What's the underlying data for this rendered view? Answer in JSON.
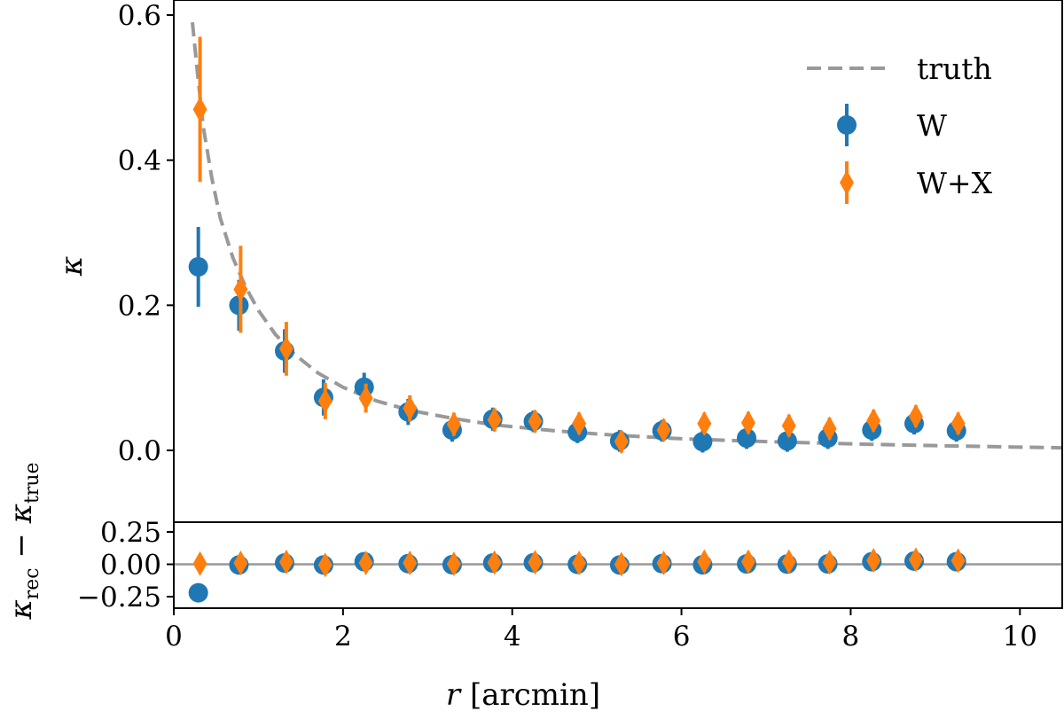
{
  "chart_data": [
    {
      "panel": "main",
      "type": "scatter",
      "xlim": [
        0,
        10.5
      ],
      "ylim": [
        -0.1,
        0.6
      ],
      "xlabel": "",
      "ylabel": "κ",
      "yticks": [
        0.0,
        0.2,
        0.4,
        0.6
      ],
      "ytick_labels": [
        "0.0",
        "0.2",
        "0.4",
        "0.6"
      ],
      "truth": {
        "name": "truth",
        "color": "#999999",
        "style": "dashed",
        "x": [
          0.22,
          0.28,
          0.35,
          0.45,
          0.55,
          0.7,
          0.85,
          1.0,
          1.2,
          1.4,
          1.7,
          2.0,
          2.4,
          2.8,
          3.3,
          3.8,
          4.5,
          5.2,
          6.0,
          7.0,
          8.0,
          9.0,
          10.0,
          10.5
        ],
        "y": [
          0.59,
          0.52,
          0.445,
          0.375,
          0.32,
          0.265,
          0.225,
          0.193,
          0.16,
          0.135,
          0.107,
          0.087,
          0.068,
          0.055,
          0.044,
          0.035,
          0.027,
          0.021,
          0.016,
          0.012,
          0.009,
          0.0065,
          0.0045,
          0.0035
        ]
      },
      "series": [
        {
          "name": "W",
          "marker": "circle",
          "color": "#1f77b4",
          "x": [
            0.29,
            0.77,
            1.31,
            1.77,
            2.25,
            2.77,
            3.29,
            3.77,
            4.25,
            4.77,
            5.27,
            5.77,
            6.25,
            6.77,
            7.25,
            7.73,
            8.25,
            8.75,
            9.25
          ],
          "y": [
            0.253,
            0.2,
            0.137,
            0.073,
            0.087,
            0.053,
            0.028,
            0.043,
            0.04,
            0.025,
            0.013,
            0.027,
            0.012,
            0.017,
            0.013,
            0.017,
            0.028,
            0.037,
            0.027
          ],
          "yerr": [
            0.055,
            0.035,
            0.03,
            0.025,
            0.02,
            0.018,
            0.016,
            0.016,
            0.015,
            0.015,
            0.015,
            0.015,
            0.015,
            0.015,
            0.015,
            0.015,
            0.015,
            0.015,
            0.015
          ]
        },
        {
          "name": "W+X",
          "marker": "diamond",
          "color": "#ff7f0e",
          "x": [
            0.31,
            0.79,
            1.33,
            1.79,
            2.27,
            2.79,
            3.31,
            3.79,
            4.27,
            4.79,
            5.29,
            5.79,
            6.27,
            6.79,
            7.27,
            7.75,
            8.27,
            8.77,
            9.27
          ],
          "y": [
            0.47,
            0.222,
            0.14,
            0.068,
            0.072,
            0.058,
            0.036,
            0.042,
            0.04,
            0.037,
            0.012,
            0.028,
            0.037,
            0.038,
            0.034,
            0.03,
            0.041,
            0.047,
            0.037
          ],
          "yerr": [
            0.1,
            0.06,
            0.037,
            0.025,
            0.02,
            0.018,
            0.016,
            0.016,
            0.015,
            0.015,
            0.015,
            0.015,
            0.015,
            0.015,
            0.015,
            0.015,
            0.015,
            0.015,
            0.015
          ]
        }
      ],
      "legend": {
        "placement": "top-right",
        "entries": [
          "truth",
          "W",
          "W+X"
        ]
      }
    },
    {
      "panel": "residual",
      "type": "scatter",
      "xlim": [
        0,
        10.5
      ],
      "ylim": [
        -0.32,
        0.32
      ],
      "xlabel": "r [arcmin]",
      "ylabel": "κrec − κtrue",
      "xticks": [
        0,
        2,
        4,
        6,
        8,
        10
      ],
      "xtick_labels": [
        "0",
        "2",
        "4",
        "6",
        "8",
        "10"
      ],
      "yticks": [
        -0.25,
        0.0,
        0.25
      ],
      "ytick_labels": [
        "−0.25",
        "0.00",
        "0.25"
      ],
      "zero_line": {
        "y": 0,
        "color": "#999999"
      },
      "series": [
        {
          "name": "W",
          "marker": "circle",
          "color": "#1f77b4",
          "x": [
            0.29,
            0.77,
            1.31,
            1.77,
            2.25,
            2.77,
            3.29,
            3.77,
            4.25,
            4.77,
            5.27,
            5.77,
            6.25,
            6.77,
            7.25,
            7.73,
            8.25,
            8.75,
            9.25
          ],
          "y": [
            -0.22,
            -0.005,
            0.01,
            -0.005,
            0.02,
            0.005,
            -0.003,
            0.01,
            0.012,
            0.0,
            -0.005,
            0.005,
            -0.004,
            0.003,
            0.002,
            0.003,
            0.02,
            0.025,
            0.02
          ],
          "yerr": [
            0.0,
            0.03,
            0.03,
            0.03,
            0.03,
            0.025,
            0.025,
            0.025,
            0.025,
            0.025,
            0.025,
            0.025,
            0.025,
            0.025,
            0.025,
            0.025,
            0.025,
            0.025,
            0.025
          ]
        },
        {
          "name": "W+X",
          "marker": "diamond",
          "color": "#ff7f0e",
          "x": [
            0.31,
            0.79,
            1.33,
            1.79,
            2.27,
            2.79,
            3.31,
            3.79,
            4.27,
            4.79,
            5.29,
            5.79,
            6.27,
            6.79,
            7.27,
            7.75,
            8.27,
            8.77,
            9.27
          ],
          "y": [
            0.005,
            0.01,
            0.018,
            -0.005,
            0.01,
            0.01,
            0.003,
            0.013,
            0.015,
            0.01,
            0.0,
            0.01,
            0.02,
            0.02,
            0.02,
            0.015,
            0.03,
            0.035,
            0.028
          ],
          "yerr": [
            0.05,
            0.04,
            0.035,
            0.035,
            0.035,
            0.03,
            0.03,
            0.03,
            0.03,
            0.03,
            0.03,
            0.03,
            0.03,
            0.03,
            0.03,
            0.03,
            0.03,
            0.03,
            0.03
          ]
        }
      ]
    }
  ]
}
